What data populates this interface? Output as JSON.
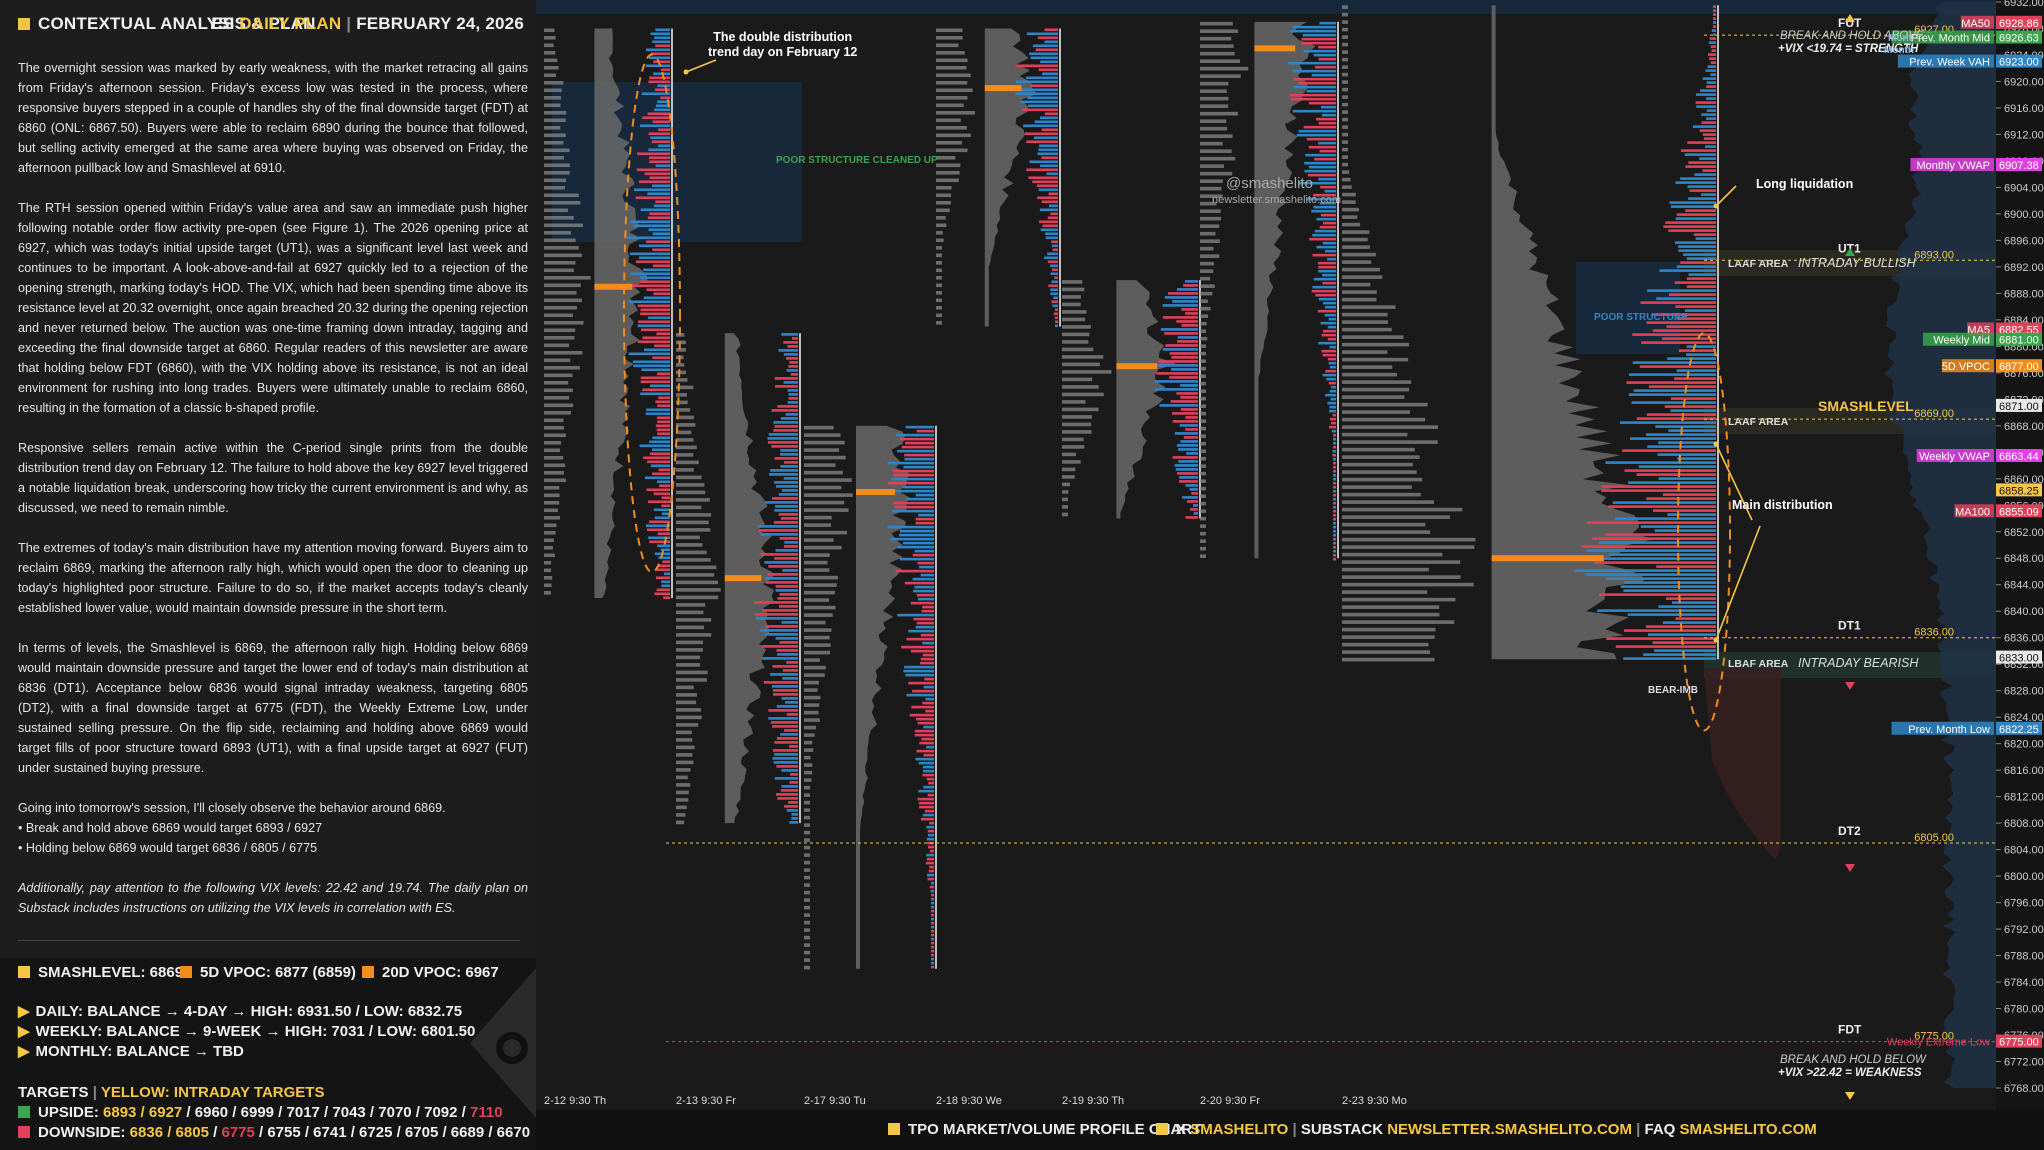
{
  "header": {
    "title": "CONTEXTUAL ANALYSIS & PLAN",
    "instrument": "ES",
    "plan": "DAILY PLAN",
    "date": "FEBRUARY 24, 2026"
  },
  "paragraphs": [
    "The overnight session was marked by early weakness, with the market retracing all gains from Friday's afternoon session. Friday's excess low was tested in the process, where responsive buyers stepped in a couple of handles shy of the final downside target (FDT) at 6860 (ONL: 6867.50). Buyers were able to reclaim 6890 during the bounce that followed, but selling activity emerged at the same area where buying was observed on Friday, the afternoon pullback low and Smashlevel at 6910.",
    "The RTH session opened within Friday's value area and saw an immediate push higher following notable order flow activity pre-open (see Figure 1). The 2026 opening price at 6927, which was today's initial upside target (UT1), was a significant level last week and continues to be important. A look-above-and-fail at 6927 quickly led to a rejection of the opening strength, marking today's HOD. The VIX, which had been spending time above its resistance level at 20.32 overnight, once again breached 20.32 during the opening rejection and never returned below. The auction was one-time framing down intraday, tagging and exceeding the final downside target at 6860. Regular readers of this newsletter are aware that holding below FDT (6860), with the VIX holding above its resistance, is not an ideal environment for rushing into long trades. Buyers were ultimately unable to reclaim 6860, resulting in the formation of a classic b-shaped profile.",
    "Responsive sellers remain active within the C-period single prints from the double distribution trend day on February 12. The failure to hold above the key 6927 level triggered a notable liquidation break, underscoring how tricky the current environment is and why, as discussed, we need to remain nimble.",
    "The extremes of today's main distribution have my attention moving forward. Buyers aim to reclaim 6869, marking the afternoon rally high, which would open the door to cleaning up today's highlighted poor structure. Failure to do so, if the market accepts today's cleanly established lower value, would maintain downside pressure in the short term.",
    "In terms of levels, the Smashlevel is 6869, the afternoon rally high. Holding below 6869 would maintain downside pressure and target the lower end of today's main distribution at 6836 (DT1). Acceptance below 6836 would signal intraday weakness, targeting 6805 (DT2), with a final downside target at 6775 (FDT), the Weekly Extreme Low, under sustained selling pressure. On the flip side, reclaiming and holding above 6869 would target fills of poor structure toward 6893 (UT1), with a final upside target at 6927 (FUT) under sustained buying pressure.",
    "Going into tomorrow's session, I'll closely observe the behavior around 6869."
  ],
  "bullets": [
    "• Break and hold above 6869 would target 6893 / 6927",
    "• Holding below 6869 would target 6836 / 6805 / 6775"
  ],
  "vix_note": "Additionally, pay attention to the following VIX levels: 22.42 and 19.74. The daily plan on Substack includes instructions on utilizing the VIX levels in correlation with ES.",
  "levels": {
    "smashlevel": "SMASHLEVEL: 6869",
    "vpoc5d": "5D VPOC: 6877 (6859)",
    "vpoc20d": "20D VPOC: 6967",
    "daily": "DAILY: BALANCE → 4-DAY → HIGH: 6931.50 / LOW: 6832.75",
    "weekly": "WEEKLY: BALANCE → 9-WEEK → HIGH: 7031 / LOW: 6801.50",
    "monthly": "MONTHLY: BALANCE → TBD",
    "targets_label": "TARGETS",
    "targets_note": "YELLOW: INTRADAY TARGETS",
    "upside_label": "UPSIDE:",
    "upside_yellow": "6893 / 6927",
    "upside_rest": " / 6960 / 6999 / 7017 / 7043 / 7070 / 7092 / ",
    "upside_red": "7110",
    "downside_label": "DOWNSIDE:",
    "downside_yellow": "6836 / 6805",
    "downside_red": "6775",
    "downside_rest": " / 6755 / 6741 / 6725 / 6705 / 6689 / 6670"
  },
  "colors": {
    "yellow": "#f6c744",
    "orange": "#f28c1a",
    "blue": "#2e86c8",
    "red": "#e0405a",
    "green": "#3aa54a",
    "magenta": "#e040e0"
  },
  "chart_data": {
    "type": "table",
    "title": "TPO MARKET/VOLUME PROFILE CHART",
    "y_axis": {
      "min": 6768,
      "max": 6932,
      "step": 4
    },
    "sessions": [
      {
        "label": "2-12  9:30 Th",
        "high": 6928,
        "low": 6842,
        "poc": 6889
      },
      {
        "label": "2-13  9:30 Fr",
        "high": 6882,
        "low": 6808,
        "poc": 6845
      },
      {
        "label": "2-17  9:30 Tu",
        "high": 6868,
        "low": 6786,
        "poc": 6858
      },
      {
        "label": "2-18  9:30 We",
        "high": 6928,
        "low": 6883,
        "poc": 6919
      },
      {
        "label": "2-19  9:30 Th",
        "high": 6890,
        "low": 6854,
        "poc": 6877
      },
      {
        "label": "2-20  9:30 Fr",
        "high": 6929,
        "low": 6848,
        "poc": 6925
      },
      {
        "label": "2-23  9:30 Mo",
        "high": 6931.5,
        "low": 6832.75,
        "poc": 6848
      }
    ],
    "levels": [
      {
        "name": "FUT",
        "value": 6927,
        "label": "6927.00"
      },
      {
        "name": "UT1",
        "value": 6893,
        "label": "6893.00"
      },
      {
        "name": "SMASHLEVEL",
        "value": 6869,
        "label": "6869.00"
      },
      {
        "name": "DT1",
        "value": 6836,
        "label": "6836.00"
      },
      {
        "name": "DT2",
        "value": 6805,
        "label": "6805.00"
      },
      {
        "name": "FDT",
        "value": 6775,
        "label": "6775.00"
      }
    ],
    "tags": [
      {
        "text": "MA50",
        "value": 6928.86,
        "label": "6928.86",
        "color": "#e0405a"
      },
      {
        "text": "Prev. Month Mid",
        "value": 6926.63,
        "label": "6926.63",
        "color": "#3aa54a"
      },
      {
        "text": "Prev. Week VAH",
        "value": 6923.0,
        "label": "6923.00",
        "color": "#2e86c8"
      },
      {
        "text": "Monthly VWAP",
        "value": 6907.38,
        "label": "6907.38",
        "color": "#e040e0"
      },
      {
        "text": "MA5",
        "value": 6882.55,
        "label": "6882.55",
        "color": "#e0405a"
      },
      {
        "text": "Weekly Mid",
        "value": 6881.0,
        "label": "6881.00",
        "color": "#3aa54a"
      },
      {
        "text": "5D VPOC",
        "value": 6877.0,
        "label": "6877.00",
        "color": "#f28c1a"
      },
      {
        "text": "",
        "value": 6871.0,
        "label": "6871.00",
        "color": "#dddddd"
      },
      {
        "text": "Weekly VWAP",
        "value": 6863.44,
        "label": "6863.44",
        "color": "#e040e0"
      },
      {
        "text": "",
        "value": 6858.25,
        "label": "6858.25",
        "color": "#f6c744"
      },
      {
        "text": "MA100",
        "value": 6855.09,
        "label": "6855.09",
        "color": "#e0405a"
      },
      {
        "text": "",
        "value": 6833.0,
        "label": "6833.00",
        "color": "#dddddd"
      },
      {
        "text": "Prev. Month Low",
        "value": 6822.25,
        "label": "6822.25",
        "color": "#2e86c8"
      },
      {
        "text": "Weekly Extreme Low",
        "value": 6775.0,
        "label": "6775.00",
        "color": "#e0405a"
      }
    ]
  },
  "chart_text": {
    "watermark_handle": "@smashelito",
    "watermark_url": "newsletter.smashelito.com",
    "double_dist": "The double distribution\ntrend day on February 12",
    "poor_cleaned": "POOR STRUCTURE CLEANED UP",
    "poor_structure": "POOR STRUCTURE",
    "long_liq": "Long liquidation",
    "main_dist": "Main distribution",
    "break_hold_above": "BREAK AND HOLD ABOVE",
    "vix_above": "+VIX <19.74 = STRENGTH",
    "break_hold_below": "BREAK AND HOLD BELOW",
    "vix_below": "+VIX >22.42 = WEAKNESS",
    "laaf": "LAAF AREA",
    "lbaf": "LBAF AREA",
    "intraday_bullish": "INTRADAY BULLISH",
    "intraday_bearish": "INTRADAY BEARISH",
    "bear_imb": "BEAR-IMB",
    "mont_partial": "Mont",
    "month_partial": "Month"
  },
  "footer": {
    "chart_label": "TPO MARKET/VOLUME PROFILE CHART",
    "x_label": "X",
    "x_handle": "SMASHELITO",
    "substack_label": "SUBSTACK",
    "substack_url": "NEWSLETTER.SMASHELITO.COM",
    "faq_label": "FAQ",
    "faq_url": "SMASHELITO.COM",
    "sep": "|"
  }
}
